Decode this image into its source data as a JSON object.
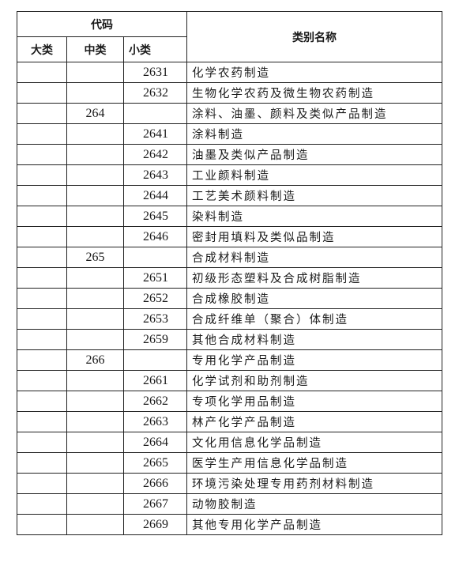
{
  "header": {
    "code_group": "代码",
    "major": "大类",
    "medium": "中类",
    "minor": "小类",
    "name": "类别名称"
  },
  "rows": [
    {
      "major": "",
      "medium": "",
      "minor": "2631",
      "name": "化学农药制造"
    },
    {
      "major": "",
      "medium": "",
      "minor": "2632",
      "name": "生物化学农药及微生物农药制造"
    },
    {
      "major": "",
      "medium": "264",
      "minor": "",
      "name": "涂料、油墨、颜料及类似产品制造"
    },
    {
      "major": "",
      "medium": "",
      "minor": "2641",
      "name": "涂料制造"
    },
    {
      "major": "",
      "medium": "",
      "minor": "2642",
      "name": "油墨及类似产品制造"
    },
    {
      "major": "",
      "medium": "",
      "minor": "2643",
      "name": "工业颜料制造"
    },
    {
      "major": "",
      "medium": "",
      "minor": "2644",
      "name": "工艺美术颜料制造"
    },
    {
      "major": "",
      "medium": "",
      "minor": "2645",
      "name": "染料制造"
    },
    {
      "major": "",
      "medium": "",
      "minor": "2646",
      "name": "密封用填料及类似品制造"
    },
    {
      "major": "",
      "medium": "265",
      "minor": "",
      "name": "合成材料制造"
    },
    {
      "major": "",
      "medium": "",
      "minor": "2651",
      "name": "初级形态塑料及合成树脂制造"
    },
    {
      "major": "",
      "medium": "",
      "minor": "2652",
      "name": "合成橡胶制造"
    },
    {
      "major": "",
      "medium": "",
      "minor": "2653",
      "name": "合成纤维单（聚合）体制造"
    },
    {
      "major": "",
      "medium": "",
      "minor": "2659",
      "name": "其他合成材料制造"
    },
    {
      "major": "",
      "medium": "266",
      "minor": "",
      "name": "专用化学产品制造"
    },
    {
      "major": "",
      "medium": "",
      "minor": "2661",
      "name": "化学试剂和助剂制造"
    },
    {
      "major": "",
      "medium": "",
      "minor": "2662",
      "name": "专项化学用品制造"
    },
    {
      "major": "",
      "medium": "",
      "minor": "2663",
      "name": "林产化学产品制造"
    },
    {
      "major": "",
      "medium": "",
      "minor": "2664",
      "name": "文化用信息化学品制造"
    },
    {
      "major": "",
      "medium": "",
      "minor": "2665",
      "name": "医学生产用信息化学品制造"
    },
    {
      "major": "",
      "medium": "",
      "minor": "2666",
      "name": "环境污染处理专用药剂材料制造"
    },
    {
      "major": "",
      "medium": "",
      "minor": "2667",
      "name": "动物胶制造"
    },
    {
      "major": "",
      "medium": "",
      "minor": "2669",
      "name": "其他专用化学产品制造"
    }
  ]
}
